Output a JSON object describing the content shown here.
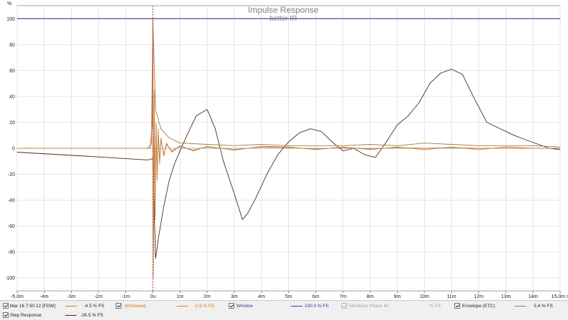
{
  "chart_data": {
    "type": "line",
    "title": "Impulse Response",
    "subtitle": "better IR",
    "ylabel": "%",
    "xlabel": "",
    "xlim": [
      -5.0,
      15.0
    ],
    "ylim": [
      -110,
      110
    ],
    "x_ticks": [
      -5,
      -4,
      -3,
      -2,
      -1,
      0,
      1,
      2,
      3,
      4,
      5,
      6,
      7,
      8,
      9,
      10,
      11,
      12,
      13,
      14,
      15
    ],
    "x_tick_labels": [
      "-5.0m",
      "-4m",
      "-3m",
      "-2m",
      "-1m",
      "0u",
      "1m",
      "2m",
      "3m",
      "4m",
      "5m",
      "6m",
      "7m",
      "8m",
      "9m",
      "10m",
      "11m",
      "12m",
      "13m",
      "14m",
      "15.0m s"
    ],
    "y_ticks": [
      100,
      80,
      60,
      40,
      20,
      0,
      -20,
      -40,
      -60,
      -80,
      -100
    ],
    "y_tick_labels": [
      "100",
      "80",
      "60",
      "40",
      "20",
      "0",
      "-20",
      "-40",
      "-60",
      "-80",
      "-100"
    ],
    "grid": true,
    "cursor_x": 0.0,
    "series": [
      {
        "name": "Mar 16 7:50:12 [FDW]",
        "color": "#c08040",
        "x": [
          -5.0,
          -0.1,
          -0.02,
          0.0,
          0.02,
          0.05,
          0.08,
          0.12,
          0.16,
          0.2,
          0.25,
          0.3,
          0.4,
          0.5,
          0.7,
          1.0,
          1.5,
          2.0,
          3.0,
          4.0,
          5.0,
          6.0,
          7.0,
          8.0,
          9.0,
          10.0,
          11.0,
          12.0,
          13.0,
          14.0,
          15.0
        ],
        "values": [
          0,
          0,
          20,
          98,
          -100,
          45,
          -55,
          20,
          -25,
          15,
          -12,
          8,
          -6,
          4,
          -3,
          2,
          -2,
          1.5,
          -1.5,
          1.5,
          1,
          -1,
          1,
          -1,
          1,
          -1,
          1,
          -1,
          1,
          0,
          0
        ]
      },
      {
        "name": "Windowed",
        "color": "#e08020",
        "x": [
          -5.0,
          -0.1,
          -0.02,
          0.0,
          0.02,
          0.05,
          0.08,
          0.12,
          0.16,
          0.2,
          0.25,
          0.3,
          0.4,
          0.5,
          0.7,
          1.0,
          1.5,
          2.0,
          3.0,
          4.0,
          5.0,
          6.0,
          7.0,
          8.0,
          9.0,
          10.0,
          11.0,
          12.0,
          13.0,
          14.0,
          15.0
        ],
        "values": [
          0,
          0,
          18,
          95,
          -98,
          42,
          -52,
          18,
          -22,
          13,
          -10,
          7,
          -5,
          3,
          -2,
          1.5,
          -1.5,
          1,
          -1,
          1,
          0.5,
          -0.5,
          0.5,
          -0.5,
          0.5,
          0,
          0.5,
          0,
          0,
          0,
          0
        ]
      },
      {
        "name": "Window",
        "color": "#3c3c9c",
        "x": [
          -5.0,
          15.0
        ],
        "values": [
          100,
          100
        ]
      },
      {
        "name": "Envelope (ETC)",
        "color": "#a07850",
        "x": [
          -5.0,
          -0.2,
          -0.05,
          0.0,
          0.1,
          0.3,
          0.6,
          1.0,
          2.0,
          3.0,
          4.0,
          5.0,
          6.0,
          7.0,
          8.0,
          9.0,
          10.0,
          11.0,
          12.0,
          13.0,
          14.0,
          15.0
        ],
        "values": [
          0,
          0,
          3,
          100,
          30,
          15,
          8,
          4,
          3,
          2,
          3,
          2,
          2,
          2,
          3,
          2,
          4,
          3,
          2,
          2,
          2,
          1
        ]
      },
      {
        "name": "Step Response",
        "color": "#403020",
        "x": [
          -5.0,
          -2.5,
          -0.2,
          0.0,
          0.1,
          0.2,
          0.4,
          0.6,
          0.8,
          1.0,
          1.3,
          1.6,
          2.0,
          2.3,
          2.6,
          3.0,
          3.3,
          3.5,
          3.8,
          4.2,
          4.6,
          5.0,
          5.4,
          5.8,
          6.2,
          6.6,
          7.0,
          7.4,
          7.8,
          8.2,
          8.6,
          9.0,
          9.4,
          9.8,
          10.2,
          10.6,
          11.0,
          11.4,
          11.8,
          12.3,
          12.8,
          13.3,
          13.8,
          14.2,
          14.6,
          15.0
        ],
        "values": [
          -3,
          -6,
          -9,
          -8,
          -85,
          -70,
          -45,
          -25,
          -12,
          -2,
          12,
          25,
          30,
          15,
          -10,
          -35,
          -55,
          -50,
          -38,
          -20,
          -5,
          5,
          12,
          15,
          13,
          5,
          -2,
          0,
          -5,
          -7,
          5,
          18,
          25,
          35,
          50,
          58,
          61,
          57,
          40,
          20,
          15,
          10,
          6,
          3,
          0,
          -1
        ]
      }
    ]
  },
  "legend": {
    "items": [
      {
        "name": "Mar 16 7:50:12 [FDW]",
        "value": "-4.5 % FS",
        "color": "#c08040",
        "text_color": "#222222",
        "enabled": true
      },
      {
        "name": "Windowed",
        "value": "-2.5 % FS",
        "color": "#e08020",
        "text_color": "#e07818",
        "enabled": true
      },
      {
        "name": "Window",
        "value": "100.0 % FS",
        "color": "#3c3c9c",
        "text_color": "#3030b0",
        "enabled": true
      },
      {
        "name": "Minimum Phase IR",
        "value": "% FS",
        "color": "#b0b0b0",
        "text_color": "#a0a0a0",
        "enabled": false
      },
      {
        "name": "Envelope (ETC)",
        "value": "5.4 % FS",
        "color": "#a07850",
        "text_color": "#222222",
        "enabled": true
      },
      {
        "name": "Step Response",
        "value": "-26.5 % FS",
        "color": "#403020",
        "text_color": "#222222",
        "enabled": true
      }
    ]
  }
}
